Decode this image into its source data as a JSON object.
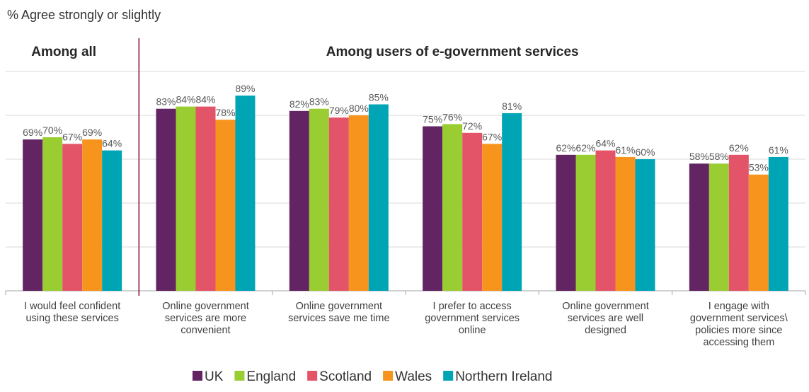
{
  "chart_data": {
    "type": "bar",
    "title": "% Agree strongly or slightly",
    "sections": [
      "Among all",
      "Among users of e-government services"
    ],
    "categories": [
      [
        "I would feel confident",
        "using these services"
      ],
      [
        "Online government",
        "services are more",
        "convenient"
      ],
      [
        "Online government",
        "services save me time"
      ],
      [
        "I prefer to access",
        "government services",
        "online"
      ],
      [
        "Online government",
        "services are well",
        "designed"
      ],
      [
        "I engage with",
        "government services\\",
        "policies more since",
        "accessing them"
      ]
    ],
    "series": [
      {
        "name": "UK",
        "color": "#622463",
        "values": [
          69,
          83,
          82,
          75,
          62,
          58
        ]
      },
      {
        "name": "England",
        "color": "#9ACD32",
        "values": [
          70,
          84,
          83,
          76,
          62,
          58
        ]
      },
      {
        "name": "Scotland",
        "color": "#E35468",
        "values": [
          67,
          84,
          79,
          72,
          64,
          62
        ]
      },
      {
        "name": "Wales",
        "color": "#F7941D",
        "values": [
          69,
          78,
          80,
          67,
          61,
          53
        ]
      },
      {
        "name": "Northern Ireland",
        "color": "#00A5B5",
        "values": [
          64,
          89,
          85,
          81,
          60,
          61
        ]
      }
    ],
    "value_suffix": "%",
    "ylim": [
      0,
      100
    ],
    "grid": true,
    "legend_position": "bottom",
    "divider_after_category": 0,
    "divider_color": "#8B1A4A"
  }
}
